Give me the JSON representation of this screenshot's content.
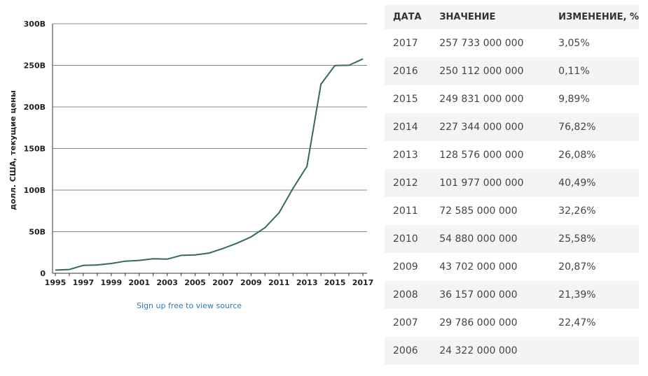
{
  "chart_data": {
    "type": "line",
    "title": "",
    "xlabel": "",
    "ylabel": "долл. США, текущие цены",
    "x": [
      1995,
      1996,
      1997,
      1998,
      1999,
      2000,
      2001,
      2002,
      2003,
      2004,
      2005,
      2006,
      2007,
      2008,
      2009,
      2010,
      2011,
      2012,
      2013,
      2014,
      2015,
      2016,
      2017
    ],
    "series": [
      {
        "values": [
          3.8,
          4.5,
          9.5,
          10.0,
          11.8,
          14.5,
          15.5,
          17.5,
          17.0,
          21.5,
          22.0,
          24.3,
          29.8,
          36.2,
          43.7,
          54.9,
          72.6,
          102.0,
          128.6,
          227.3,
          249.8,
          250.1,
          257.7
        ]
      }
    ],
    "ylim": [
      0,
      300
    ],
    "yticks": [
      0,
      50,
      100,
      150,
      200,
      250,
      300
    ],
    "ytick_labels": [
      "0",
      "50B",
      "100B",
      "150B",
      "200B",
      "250B",
      "300B"
    ],
    "xticks": [
      1995,
      1997,
      1999,
      2001,
      2003,
      2005,
      2007,
      2009,
      2011,
      2013,
      2015,
      2017
    ],
    "xtick_labels": [
      "1995",
      "1997",
      "1999",
      "2001",
      "2003",
      "2005",
      "2007",
      "2009",
      "2011",
      "2013",
      "2015",
      "2017"
    ],
    "grid": "horizontal",
    "line_color": "#336b50"
  },
  "source_link": "Sign up free to view source",
  "table": {
    "headers": [
      "ДАТА",
      "ЗНАЧЕНИЕ",
      "ИЗМЕНЕНИЕ, %"
    ],
    "rows": [
      [
        "2017",
        "257 733 000 000",
        "3,05%"
      ],
      [
        "2016",
        "250 112 000 000",
        "0,11%"
      ],
      [
        "2015",
        "249 831 000 000",
        "9,89%"
      ],
      [
        "2014",
        "227 344 000 000",
        "76,82%"
      ],
      [
        "2013",
        "128 576 000 000",
        "26,08%"
      ],
      [
        "2012",
        "101 977 000 000",
        "40,49%"
      ],
      [
        "2011",
        "72 585 000 000",
        "32,26%"
      ],
      [
        "2010",
        "54 880 000 000",
        "25,58%"
      ],
      [
        "2009",
        "43 702 000 000",
        "20,87%"
      ],
      [
        "2008",
        "36 157 000 000",
        "21,39%"
      ],
      [
        "2007",
        "29 786 000 000",
        "22,47%"
      ],
      [
        "2006",
        "24 322 000 000",
        ""
      ]
    ]
  }
}
